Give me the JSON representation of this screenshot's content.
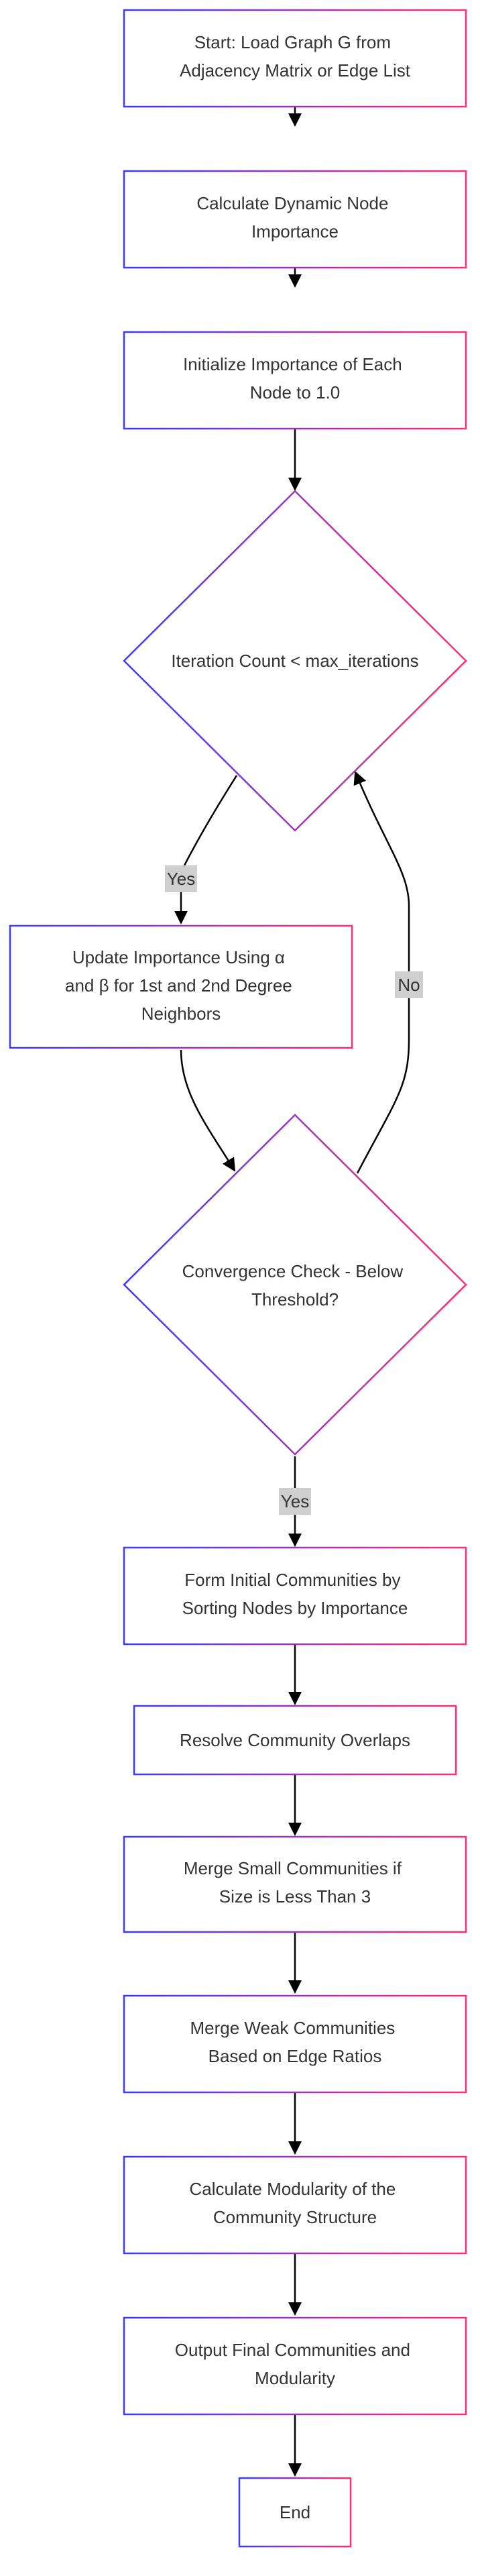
{
  "nodes": {
    "start": [
      "Start: Load Graph G from",
      "Adjacency Matrix or Edge List"
    ],
    "calc_importance": [
      "Calculate Dynamic Node",
      "Importance"
    ],
    "init_importance": [
      "Initialize Importance of Each",
      "Node to 1.0"
    ],
    "iteration_check": [
      "Iteration Count < max_iterations"
    ],
    "update_importance": [
      "Update Importance Using α",
      "and β for 1st and 2nd Degree",
      "Neighbors"
    ],
    "convergence_check": [
      "Convergence Check - Below",
      "Threshold?"
    ],
    "form_communities": [
      "Form Initial Communities by",
      "Sorting Nodes by Importance"
    ],
    "resolve_overlaps": [
      "Resolve Community Overlaps"
    ],
    "merge_small": [
      "Merge Small Communities if",
      "Size is Less Than 3"
    ],
    "merge_weak": [
      "Merge Weak Communities",
      "Based on Edge Ratios"
    ],
    "calc_modularity": [
      "Calculate Modularity of the",
      "Community Structure"
    ],
    "output": [
      "Output Final Communities and",
      "Modularity"
    ],
    "end": [
      "End"
    ]
  },
  "edge_labels": {
    "iteration_yes": "Yes",
    "convergence_no": "No",
    "convergence_yes": "Yes"
  },
  "colors": {
    "gradient_start": "#3b3bff",
    "gradient_end": "#ff2f72",
    "edge": "#000000",
    "label_bg": "#cfcfcf",
    "text": "#333333"
  }
}
